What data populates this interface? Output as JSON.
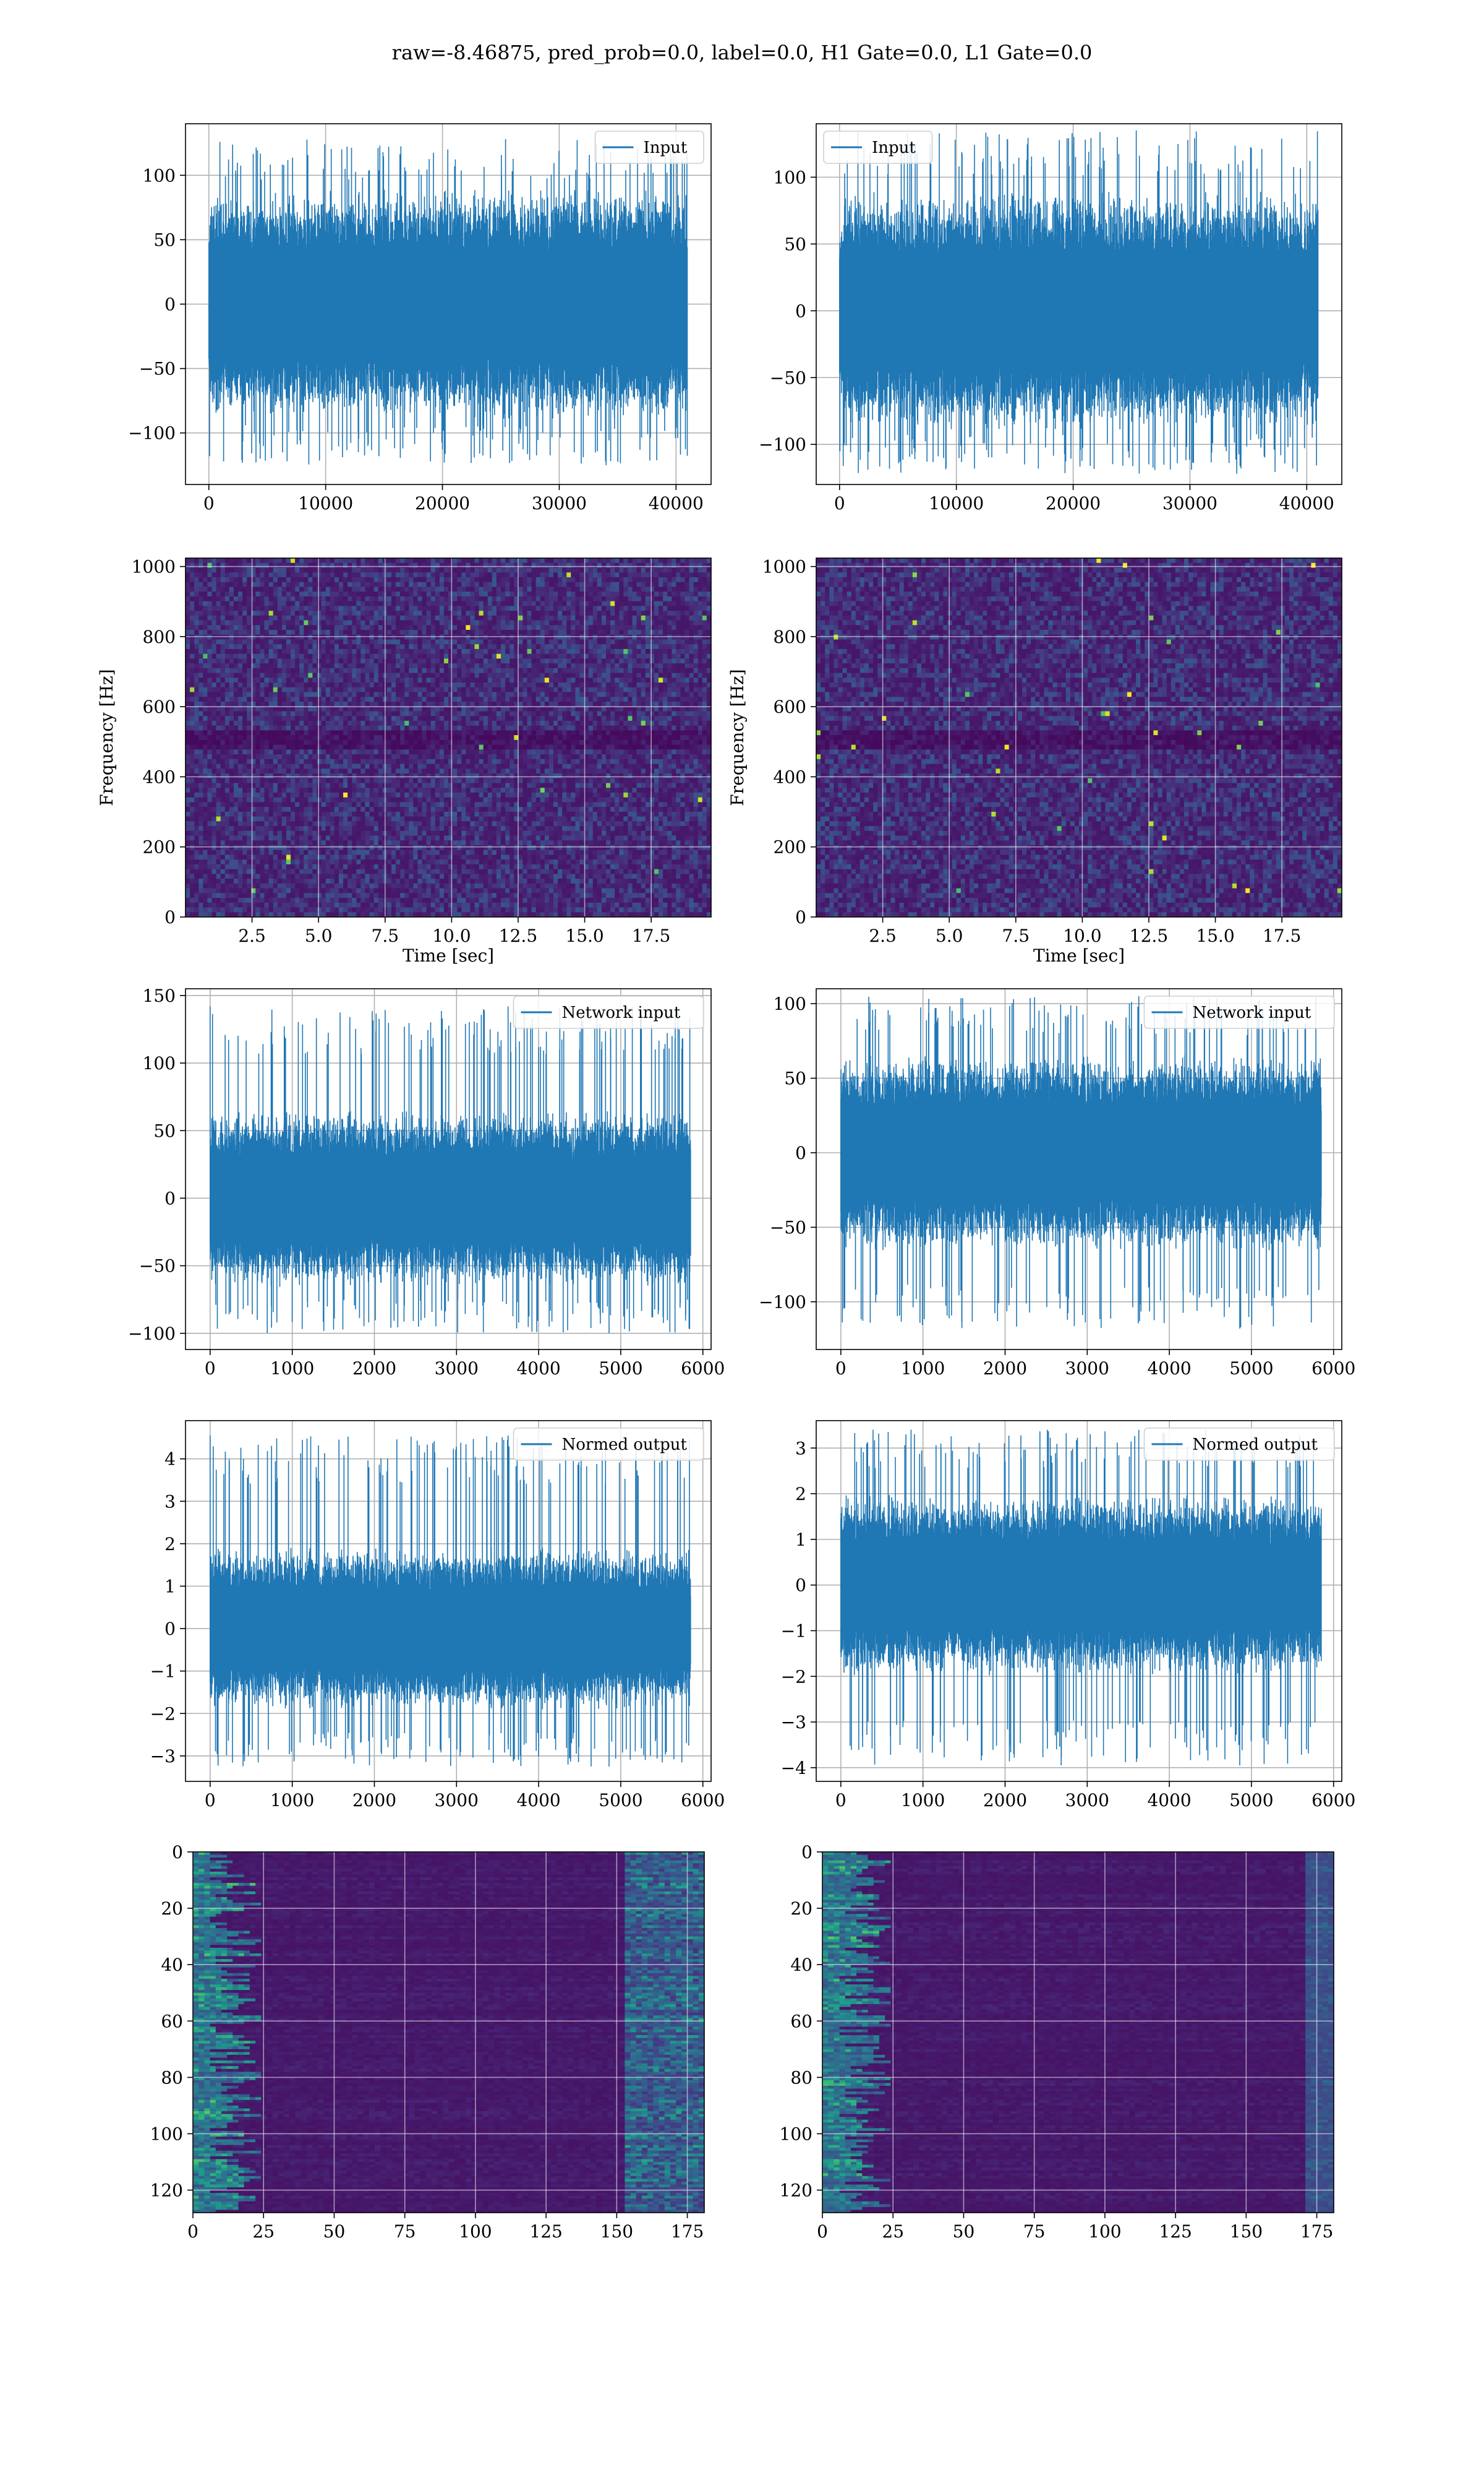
{
  "figure": {
    "suptitle": "raw=-8.46875, pred_prob=0.0, label=0.0, H1 Gate=0.0, L1 Gate=0.0",
    "colors": {
      "series": "#1f77b4",
      "grid": "#b0b0b0",
      "axes": "#000000"
    }
  },
  "chart_data": [
    {
      "type": "line",
      "series": [
        {
          "name": "Input"
        }
      ],
      "legend": "upper right",
      "xlim": [
        -2000,
        43000
      ],
      "ylim": [
        -140,
        140
      ],
      "xticks": [
        0,
        10000,
        20000,
        30000,
        40000
      ],
      "xticklabels": [
        "0",
        "10000",
        "20000",
        "30000",
        "40000"
      ],
      "yticks": [
        -100,
        -50,
        0,
        50,
        100
      ],
      "yticklabels": [
        "−100",
        "−50",
        "0",
        "50",
        "100"
      ],
      "xlabel": "",
      "ylabel": "",
      "grid": true,
      "signal": {
        "n": 40960,
        "x_end": 40960,
        "core": 68,
        "max_peak": 128,
        "min_peak": -125
      }
    },
    {
      "type": "line",
      "series": [
        {
          "name": "Input"
        }
      ],
      "legend": "upper left",
      "xlim": [
        -2000,
        43000
      ],
      "ylim": [
        -130,
        140
      ],
      "xticks": [
        0,
        10000,
        20000,
        30000,
        40000
      ],
      "xticklabels": [
        "0",
        "10000",
        "20000",
        "30000",
        "40000"
      ],
      "yticks": [
        -100,
        -50,
        0,
        50,
        100
      ],
      "yticklabels": [
        "−100",
        "−50",
        "0",
        "50",
        "100"
      ],
      "xlabel": "",
      "ylabel": "",
      "grid": true,
      "signal": {
        "n": 40960,
        "x_end": 40960,
        "core": 68,
        "max_peak": 135,
        "min_peak": -122
      }
    },
    {
      "type": "heatmap",
      "colormap": "viridis",
      "xlim": [
        0,
        19.75
      ],
      "ylim": [
        0,
        1024
      ],
      "xticks": [
        2.5,
        5,
        7.5,
        10,
        12.5,
        15,
        17.5
      ],
      "xticklabels": [
        "2.5",
        "5.0",
        "7.5",
        "10.0",
        "12.5",
        "15.0",
        "17.5"
      ],
      "yticks": [
        0,
        200,
        400,
        600,
        800,
        1000
      ],
      "yticklabels": [
        "0",
        "200",
        "400",
        "600",
        "800",
        "1000"
      ],
      "xlabel": "Time [sec]",
      "ylabel": "Frequency [Hz]",
      "grid": true
    },
    {
      "type": "heatmap",
      "colormap": "viridis",
      "xlim": [
        0,
        19.75
      ],
      "ylim": [
        0,
        1024
      ],
      "xticks": [
        2.5,
        5,
        7.5,
        10,
        12.5,
        15,
        17.5
      ],
      "xticklabels": [
        "2.5",
        "5.0",
        "7.5",
        "10.0",
        "12.5",
        "15.0",
        "17.5"
      ],
      "yticks": [
        0,
        200,
        400,
        600,
        800,
        1000
      ],
      "yticklabels": [
        "0",
        "200",
        "400",
        "600",
        "800",
        "1000"
      ],
      "xlabel": "Time [sec]",
      "ylabel": "Frequency [Hz]",
      "grid": true
    },
    {
      "type": "line",
      "series": [
        {
          "name": "Network input"
        }
      ],
      "legend": "upper right",
      "xlim": [
        -300,
        6100
      ],
      "ylim": [
        -112,
        155
      ],
      "xticks": [
        0,
        1000,
        2000,
        3000,
        4000,
        5000,
        6000
      ],
      "xticklabels": [
        "0",
        "1000",
        "2000",
        "3000",
        "4000",
        "5000",
        "6000"
      ],
      "yticks": [
        -100,
        -50,
        0,
        50,
        100,
        150
      ],
      "yticklabels": [
        "−100",
        "−50",
        "0",
        "50",
        "100",
        "150"
      ],
      "xlabel": "",
      "ylabel": "",
      "grid": true,
      "signal": {
        "n": 5850,
        "x_end": 5850,
        "core": 50,
        "max_peak": 142,
        "min_peak": -100
      }
    },
    {
      "type": "line",
      "series": [
        {
          "name": "Network input"
        }
      ],
      "legend": "upper right",
      "xlim": [
        -300,
        6100
      ],
      "ylim": [
        -132,
        110
      ],
      "xticks": [
        0,
        1000,
        2000,
        3000,
        4000,
        5000,
        6000
      ],
      "xticklabels": [
        "0",
        "1000",
        "2000",
        "3000",
        "4000",
        "5000",
        "6000"
      ],
      "yticks": [
        -100,
        -50,
        0,
        50,
        100
      ],
      "yticklabels": [
        "−100",
        "−50",
        "0",
        "50",
        "100"
      ],
      "xlabel": "",
      "ylabel": "",
      "grid": true,
      "signal": {
        "n": 5850,
        "x_end": 5850,
        "core": 50,
        "max_peak": 105,
        "min_peak": -118
      }
    },
    {
      "type": "line",
      "series": [
        {
          "name": "Normed output"
        }
      ],
      "legend": "upper right",
      "xlim": [
        -300,
        6100
      ],
      "ylim": [
        -3.6,
        4.9
      ],
      "xticks": [
        0,
        1000,
        2000,
        3000,
        4000,
        5000,
        6000
      ],
      "xticklabels": [
        "0",
        "1000",
        "2000",
        "3000",
        "4000",
        "5000",
        "6000"
      ],
      "yticks": [
        -3,
        -2,
        -1,
        0,
        1,
        2,
        3,
        4
      ],
      "yticklabels": [
        "−3",
        "−2",
        "−1",
        "0",
        "1",
        "2",
        "3",
        "4"
      ],
      "xlabel": "",
      "ylabel": "",
      "grid": true,
      "signal": {
        "n": 5850,
        "x_end": 5850,
        "core": 1.45,
        "max_peak": 4.55,
        "min_peak": -3.25
      }
    },
    {
      "type": "line",
      "series": [
        {
          "name": "Normed output"
        }
      ],
      "legend": "upper right",
      "xlim": [
        -300,
        6100
      ],
      "ylim": [
        -4.3,
        3.6
      ],
      "xticks": [
        0,
        1000,
        2000,
        3000,
        4000,
        5000,
        6000
      ],
      "xticklabels": [
        "0",
        "1000",
        "2000",
        "3000",
        "4000",
        "5000",
        "6000"
      ],
      "yticks": [
        -4,
        -3,
        -2,
        -1,
        0,
        1,
        2,
        3
      ],
      "yticklabels": [
        "−4",
        "−3",
        "−2",
        "−1",
        "0",
        "1",
        "2",
        "3"
      ],
      "xlabel": "",
      "ylabel": "",
      "grid": true,
      "signal": {
        "n": 5850,
        "x_end": 5850,
        "core": 1.5,
        "max_peak": 3.4,
        "min_peak": -3.95
      }
    },
    {
      "type": "heatmap",
      "colormap": "viridis",
      "xlim": [
        0,
        181
      ],
      "ylim": [
        128,
        0
      ],
      "xticks": [
        0,
        25,
        50,
        75,
        100,
        125,
        150,
        175
      ],
      "xticklabels": [
        "0",
        "25",
        "50",
        "75",
        "100",
        "125",
        "150",
        "175"
      ],
      "yticks": [
        0,
        20,
        40,
        60,
        80,
        100,
        120
      ],
      "yticklabels": [
        "0",
        "20",
        "40",
        "60",
        "80",
        "100",
        "120"
      ],
      "xlabel": "",
      "ylabel": "",
      "grid": true,
      "rows": 128,
      "cols": 181
    },
    {
      "type": "heatmap",
      "colormap": "viridis",
      "xlim": [
        0,
        181
      ],
      "ylim": [
        128,
        0
      ],
      "xticks": [
        0,
        25,
        50,
        75,
        100,
        125,
        150,
        175
      ],
      "xticklabels": [
        "0",
        "25",
        "50",
        "75",
        "100",
        "125",
        "150",
        "175"
      ],
      "yticks": [
        0,
        20,
        40,
        60,
        80,
        100,
        120
      ],
      "yticklabels": [
        "0",
        "20",
        "40",
        "60",
        "80",
        "100",
        "120"
      ],
      "xlabel": "",
      "ylabel": "",
      "grid": true,
      "rows": 128,
      "cols": 181
    }
  ]
}
